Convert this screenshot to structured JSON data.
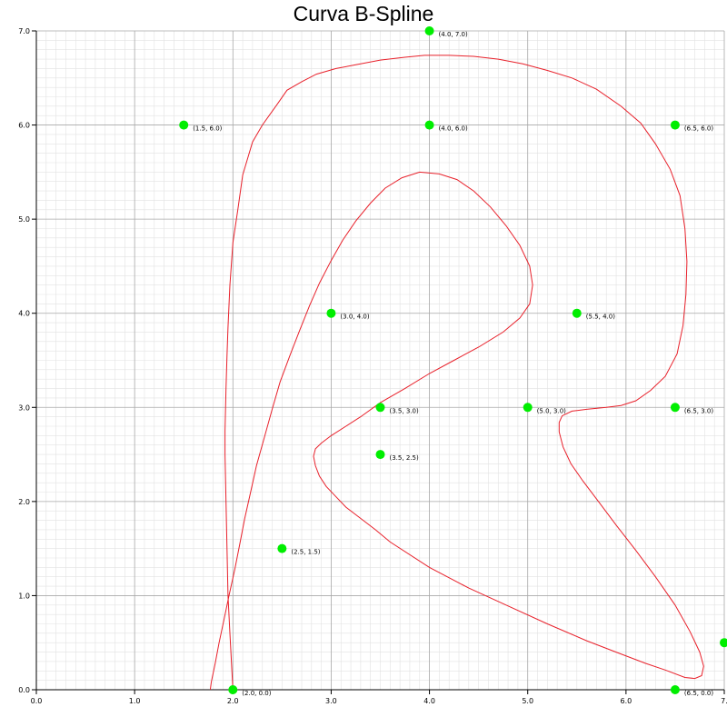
{
  "chart_data": {
    "type": "line",
    "title": "Curva B-Spline",
    "xlabel": "",
    "ylabel": "",
    "xlim": [
      0,
      7
    ],
    "ylim": [
      0,
      7
    ],
    "grid": true,
    "x_ticks": [
      "0.0",
      "1.0",
      "2.0",
      "3.0",
      "4.0",
      "5.0",
      "6.0",
      "7."
    ],
    "y_ticks": [
      "0.0",
      "1.0",
      "2.0",
      "3.0",
      "4.0",
      "5.0",
      "6.0",
      "7.0"
    ],
    "colors": {
      "curve": "#e8212b",
      "control_points": "#00ee00",
      "major_grid": "#a8a8a8",
      "minor_grid": "#e2e2e2"
    },
    "control_points": [
      {
        "x": 2.0,
        "y": 0.0,
        "label": "(2.0, 0.0)"
      },
      {
        "x": 2.5,
        "y": 1.5,
        "label": "(2.5, 1.5)"
      },
      {
        "x": 3.0,
        "y": 4.0,
        "label": "(3.0, 4.0)"
      },
      {
        "x": 1.5,
        "y": 6.0,
        "label": "(1.5, 6.0)"
      },
      {
        "x": 4.0,
        "y": 7.0,
        "label": "(4.0, 7.0)"
      },
      {
        "x": 4.0,
        "y": 6.0,
        "label": "(4.0, 6.0)"
      },
      {
        "x": 6.5,
        "y": 6.0,
        "label": "(6.5, 6.0)"
      },
      {
        "x": 5.5,
        "y": 4.0,
        "label": "(5.5, 4.0)"
      },
      {
        "x": 3.5,
        "y": 3.0,
        "label": "(3.5, 3.0)"
      },
      {
        "x": 5.0,
        "y": 3.0,
        "label": "(5.0, 3.0)"
      },
      {
        "x": 6.5,
        "y": 3.0,
        "label": "(6.5, 3.0)"
      },
      {
        "x": 3.5,
        "y": 2.5,
        "label": "(3.5, 2.5)"
      },
      {
        "x": 6.5,
        "y": 0.0,
        "label": "(6.5, 0.0)"
      },
      {
        "x": 7.0,
        "y": 0.5,
        "label": ""
      }
    ],
    "curve": [
      [
        2.0,
        0.0
      ],
      [
        1.99,
        0.2
      ],
      [
        1.97,
        0.6
      ],
      [
        1.95,
        1.0
      ],
      [
        1.94,
        1.5
      ],
      [
        1.93,
        2.0
      ],
      [
        1.92,
        2.5
      ],
      [
        1.92,
        2.75
      ],
      [
        1.93,
        3.2
      ],
      [
        1.94,
        3.55
      ],
      [
        1.95,
        3.85
      ],
      [
        1.97,
        4.3
      ],
      [
        2.0,
        4.75
      ],
      [
        2.05,
        5.1
      ],
      [
        2.1,
        5.47
      ],
      [
        2.2,
        5.82
      ],
      [
        2.3,
        6.0
      ],
      [
        2.45,
        6.22
      ],
      [
        2.55,
        6.37
      ],
      [
        2.7,
        6.46
      ],
      [
        2.85,
        6.54
      ],
      [
        3.05,
        6.6
      ],
      [
        3.25,
        6.64
      ],
      [
        3.5,
        6.69
      ],
      [
        3.75,
        6.72
      ],
      [
        3.95,
        6.74
      ],
      [
        4.2,
        6.74
      ],
      [
        4.45,
        6.73
      ],
      [
        4.7,
        6.7
      ],
      [
        4.95,
        6.65
      ],
      [
        5.2,
        6.58
      ],
      [
        5.45,
        6.5
      ],
      [
        5.7,
        6.38
      ],
      [
        5.95,
        6.2
      ],
      [
        6.15,
        6.02
      ],
      [
        6.3,
        5.8
      ],
      [
        6.45,
        5.53
      ],
      [
        6.55,
        5.25
      ],
      [
        6.6,
        4.9
      ],
      [
        6.62,
        4.55
      ],
      [
        6.61,
        4.2
      ],
      [
        6.58,
        3.87
      ],
      [
        6.52,
        3.57
      ],
      [
        6.4,
        3.33
      ],
      [
        6.25,
        3.18
      ],
      [
        6.1,
        3.07
      ],
      [
        5.95,
        3.02
      ],
      [
        5.8,
        3.0
      ],
      [
        5.6,
        2.98
      ],
      [
        5.45,
        2.96
      ],
      [
        5.35,
        2.91
      ],
      [
        5.32,
        2.84
      ],
      [
        5.32,
        2.74
      ],
      [
        5.36,
        2.58
      ],
      [
        5.44,
        2.4
      ],
      [
        5.56,
        2.22
      ],
      [
        5.72,
        2.0
      ],
      [
        5.9,
        1.75
      ],
      [
        6.1,
        1.48
      ],
      [
        6.3,
        1.2
      ],
      [
        6.5,
        0.9
      ],
      [
        6.65,
        0.62
      ],
      [
        6.75,
        0.4
      ],
      [
        6.79,
        0.25
      ],
      [
        6.77,
        0.15
      ],
      [
        6.7,
        0.12
      ],
      [
        6.6,
        0.13
      ],
      [
        6.4,
        0.21
      ],
      [
        6.2,
        0.28
      ],
      [
        5.9,
        0.4
      ],
      [
        5.6,
        0.52
      ],
      [
        5.2,
        0.7
      ],
      [
        4.8,
        0.89
      ],
      [
        4.4,
        1.08
      ],
      [
        4.0,
        1.3
      ],
      [
        3.6,
        1.57
      ],
      [
        3.45,
        1.7
      ],
      [
        3.3,
        1.82
      ],
      [
        3.15,
        1.94
      ],
      [
        3.05,
        2.05
      ],
      [
        2.95,
        2.16
      ],
      [
        2.88,
        2.27
      ],
      [
        2.84,
        2.38
      ],
      [
        2.82,
        2.48
      ],
      [
        2.84,
        2.56
      ],
      [
        2.9,
        2.62
      ],
      [
        3.0,
        2.7
      ],
      [
        3.15,
        2.8
      ],
      [
        3.3,
        2.9
      ],
      [
        3.5,
        3.05
      ],
      [
        3.75,
        3.2
      ],
      [
        4.0,
        3.36
      ],
      [
        4.25,
        3.5
      ],
      [
        4.5,
        3.64
      ],
      [
        4.75,
        3.8
      ],
      [
        4.92,
        3.95
      ],
      [
        5.02,
        4.1
      ],
      [
        5.05,
        4.3
      ],
      [
        5.02,
        4.5
      ],
      [
        4.92,
        4.72
      ],
      [
        4.78,
        4.93
      ],
      [
        4.62,
        5.13
      ],
      [
        4.45,
        5.3
      ],
      [
        4.28,
        5.42
      ],
      [
        4.1,
        5.48
      ],
      [
        3.9,
        5.5
      ],
      [
        3.72,
        5.44
      ],
      [
        3.55,
        5.33
      ],
      [
        3.4,
        5.17
      ],
      [
        3.25,
        4.98
      ],
      [
        3.12,
        4.78
      ],
      [
        3.0,
        4.56
      ],
      [
        2.88,
        4.32
      ],
      [
        2.78,
        4.08
      ],
      [
        2.68,
        3.82
      ],
      [
        2.58,
        3.55
      ],
      [
        2.48,
        3.27
      ],
      [
        2.4,
        2.98
      ],
      [
        2.32,
        2.68
      ],
      [
        2.24,
        2.38
      ],
      [
        2.18,
        2.1
      ],
      [
        2.12,
        1.82
      ],
      [
        2.07,
        1.55
      ],
      [
        2.02,
        1.28
      ],
      [
        1.96,
        1.0
      ],
      [
        1.91,
        0.75
      ],
      [
        1.86,
        0.5
      ],
      [
        1.82,
        0.28
      ],
      [
        1.78,
        0.08
      ],
      [
        1.77,
        0.0
      ]
    ]
  }
}
